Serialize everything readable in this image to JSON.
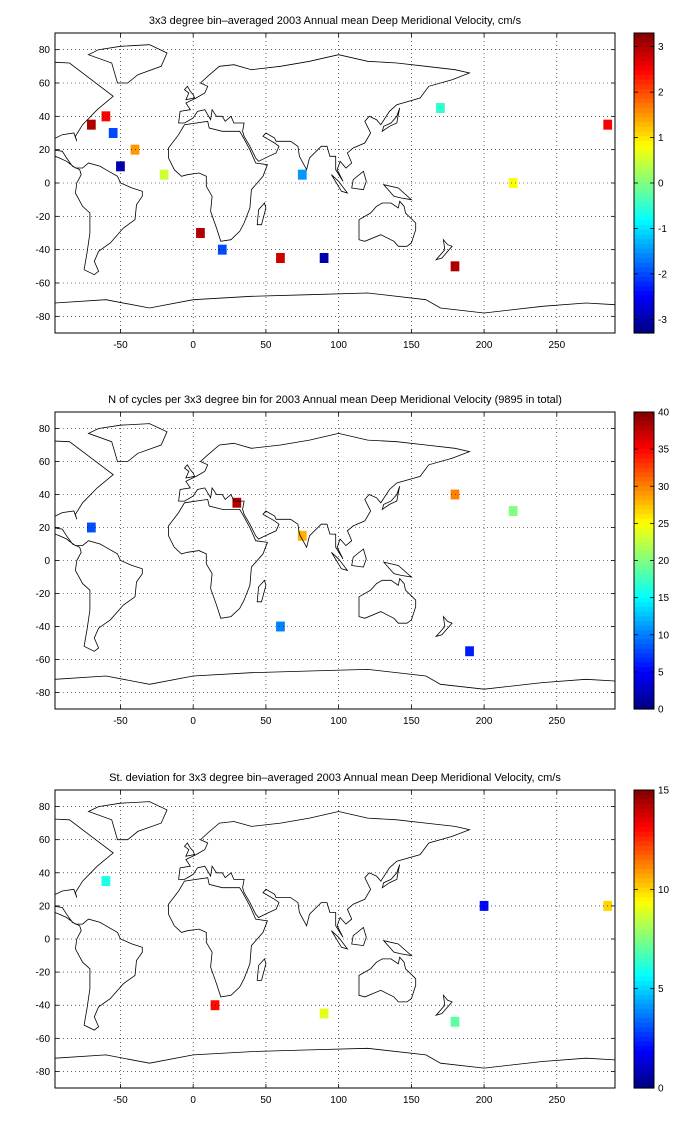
{
  "chart_data": [
    {
      "type": "heatmap",
      "title": "3x3 degree bin–averaged 2003 Annual mean Deep Meridional Velocity, cm/s",
      "xlim": [
        -95,
        290
      ],
      "ylim": [
        -90,
        90
      ],
      "x_ticks": [
        -50,
        0,
        50,
        100,
        150,
        200,
        250
      ],
      "y_ticks": [
        80,
        60,
        40,
        20,
        0,
        -20,
        -40,
        -60,
        -80
      ],
      "colorbar": {
        "range": [
          -3.3,
          3.3
        ],
        "ticks": [
          3,
          2,
          1,
          0,
          -1,
          -2,
          -3
        ],
        "colormap": "jet"
      },
      "grid": true,
      "samples": [
        {
          "lon": -70,
          "lat": 35,
          "value": 3
        },
        {
          "lon": -60,
          "lat": 40,
          "value": 2.5
        },
        {
          "lon": -55,
          "lat": 30,
          "value": -2
        },
        {
          "lon": -40,
          "lat": 20,
          "value": 1.5
        },
        {
          "lon": -50,
          "lat": 10,
          "value": -3
        },
        {
          "lon": -20,
          "lat": 5,
          "value": 0.5
        },
        {
          "lon": 5,
          "lat": -30,
          "value": 3
        },
        {
          "lon": 20,
          "lat": -40,
          "value": -2
        },
        {
          "lon": 60,
          "lat": -45,
          "value": 2.8
        },
        {
          "lon": 90,
          "lat": -45,
          "value": -3
        },
        {
          "lon": 75,
          "lat": 5,
          "value": -1.5
        },
        {
          "lon": 180,
          "lat": -50,
          "value": 3
        },
        {
          "lon": 170,
          "lat": 45,
          "value": -0.5
        },
        {
          "lon": 220,
          "lat": 0,
          "value": 0.8
        },
        {
          "lon": 285,
          "lat": 35,
          "value": 2.5
        }
      ]
    },
    {
      "type": "heatmap",
      "title": "N of cycles per 3x3 degree bin for 2003 Annual mean Deep Meridional Velocity (9895 in total)",
      "xlim": [
        -95,
        290
      ],
      "ylim": [
        -90,
        90
      ],
      "x_ticks": [
        -50,
        0,
        50,
        100,
        150,
        200,
        250
      ],
      "y_ticks": [
        80,
        60,
        40,
        20,
        0,
        -20,
        -40,
        -60,
        -80
      ],
      "colorbar": {
        "range": [
          0,
          40
        ],
        "ticks": [
          40,
          35,
          30,
          25,
          20,
          15,
          10,
          5,
          0
        ],
        "colormap": "jet"
      },
      "grid": true,
      "samples": [
        {
          "lon": 30,
          "lat": 35,
          "value": 38
        },
        {
          "lon": 180,
          "lat": 40,
          "value": 30
        },
        {
          "lon": 75,
          "lat": 15,
          "value": 28
        },
        {
          "lon": -70,
          "lat": 20,
          "value": 8
        },
        {
          "lon": 190,
          "lat": -55,
          "value": 6
        },
        {
          "lon": 220,
          "lat": 30,
          "value": 20
        },
        {
          "lon": 60,
          "lat": -40,
          "value": 10
        }
      ]
    },
    {
      "type": "heatmap",
      "title": "St. deviation for 3x3 degree bin–averaged 2003 Annual mean Deep Meridional Velocity, cm/s",
      "xlim": [
        -95,
        290
      ],
      "ylim": [
        -90,
        90
      ],
      "x_ticks": [
        -50,
        0,
        50,
        100,
        150,
        200,
        250
      ],
      "y_ticks": [
        80,
        60,
        40,
        20,
        0,
        -20,
        -40,
        -60,
        -80
      ],
      "colorbar": {
        "range": [
          0,
          15
        ],
        "ticks": [
          15,
          10,
          5,
          0
        ],
        "colormap": "jet"
      },
      "grid": true,
      "samples": [
        {
          "lon": 15,
          "lat": -40,
          "value": 13
        },
        {
          "lon": 90,
          "lat": -45,
          "value": 9
        },
        {
          "lon": -60,
          "lat": 35,
          "value": 6
        },
        {
          "lon": 200,
          "lat": 20,
          "value": 2
        },
        {
          "lon": 180,
          "lat": -50,
          "value": 7
        },
        {
          "lon": 285,
          "lat": 20,
          "value": 10
        }
      ]
    }
  ]
}
